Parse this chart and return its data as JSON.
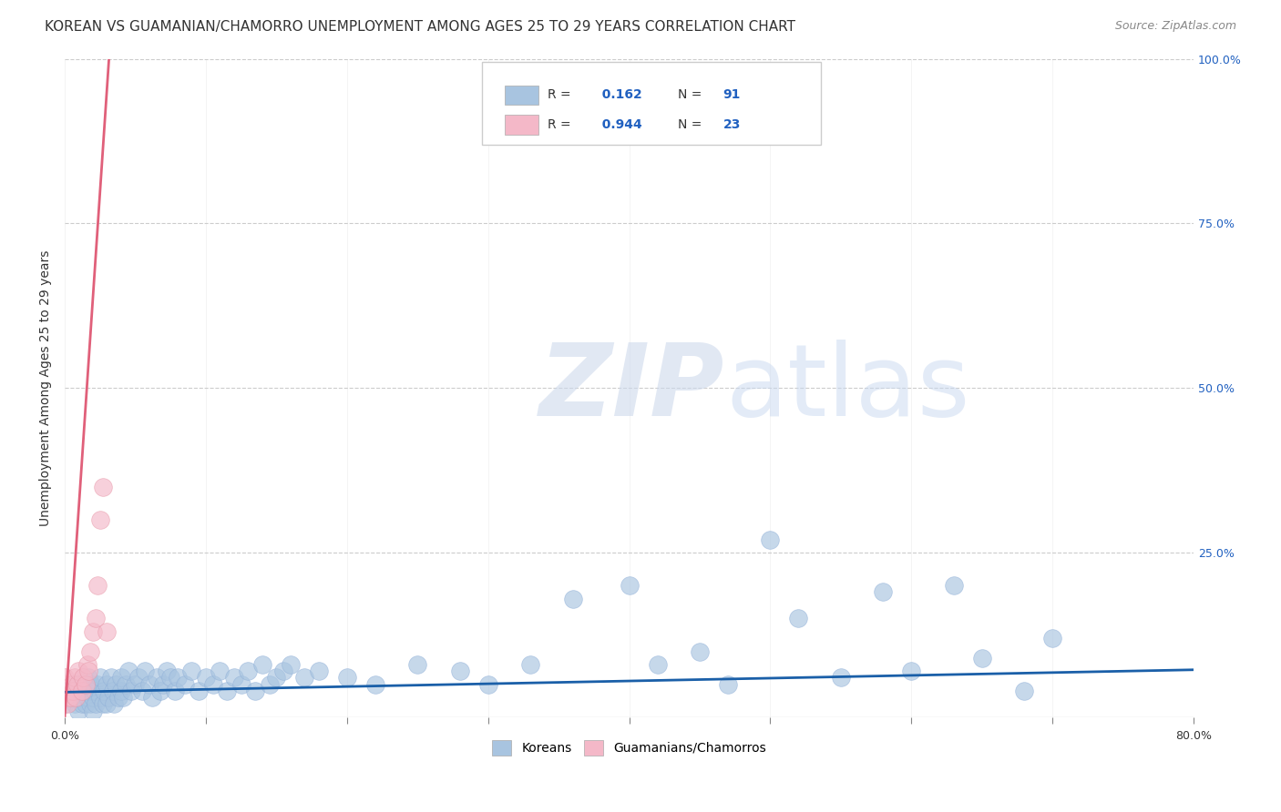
{
  "title": "KOREAN VS GUAMANIAN/CHAMORRO UNEMPLOYMENT AMONG AGES 25 TO 29 YEARS CORRELATION CHART",
  "source": "Source: ZipAtlas.com",
  "ylabel": "Unemployment Among Ages 25 to 29 years",
  "xlim": [
    0.0,
    0.8
  ],
  "ylim": [
    0.0,
    1.0
  ],
  "xticks": [
    0.0,
    0.1,
    0.2,
    0.3,
    0.4,
    0.5,
    0.6,
    0.7,
    0.8
  ],
  "xticklabels": [
    "0.0%",
    "",
    "",
    "",
    "",
    "",
    "",
    "",
    "80.0%"
  ],
  "yticks_right": [
    0.0,
    0.25,
    0.5,
    0.75,
    1.0
  ],
  "yticklabels_right": [
    "",
    "25.0%",
    "50.0%",
    "75.0%",
    "100.0%"
  ],
  "korean_color": "#a8c4e0",
  "guam_color": "#f4b8c8",
  "korean_R": "0.162",
  "korean_N": "91",
  "guam_R": "0.944",
  "guam_N": "23",
  "legend_korean": "Koreans",
  "legend_guam": "Guamanians/Chamorros",
  "korean_x": [
    0.0,
    0.0,
    0.005,
    0.007,
    0.008,
    0.01,
    0.01,
    0.01,
    0.012,
    0.013,
    0.015,
    0.015,
    0.016,
    0.017,
    0.018,
    0.018,
    0.019,
    0.02,
    0.02,
    0.021,
    0.022,
    0.023,
    0.025,
    0.025,
    0.027,
    0.028,
    0.03,
    0.03,
    0.031,
    0.033,
    0.034,
    0.035,
    0.036,
    0.038,
    0.04,
    0.04,
    0.041,
    0.043,
    0.045,
    0.047,
    0.05,
    0.052,
    0.055,
    0.057,
    0.06,
    0.062,
    0.065,
    0.068,
    0.07,
    0.072,
    0.075,
    0.078,
    0.08,
    0.085,
    0.09,
    0.095,
    0.1,
    0.105,
    0.11,
    0.115,
    0.12,
    0.125,
    0.13,
    0.135,
    0.14,
    0.145,
    0.15,
    0.155,
    0.16,
    0.17,
    0.18,
    0.2,
    0.22,
    0.25,
    0.28,
    0.3,
    0.33,
    0.36,
    0.4,
    0.42,
    0.45,
    0.47,
    0.5,
    0.52,
    0.55,
    0.58,
    0.6,
    0.63,
    0.65,
    0.68,
    0.7
  ],
  "korean_y": [
    0.02,
    0.04,
    0.03,
    0.02,
    0.05,
    0.01,
    0.03,
    0.05,
    0.02,
    0.04,
    0.02,
    0.05,
    0.03,
    0.06,
    0.02,
    0.04,
    0.05,
    0.01,
    0.03,
    0.04,
    0.02,
    0.05,
    0.03,
    0.06,
    0.02,
    0.04,
    0.02,
    0.05,
    0.03,
    0.06,
    0.04,
    0.02,
    0.05,
    0.03,
    0.04,
    0.06,
    0.03,
    0.05,
    0.07,
    0.04,
    0.05,
    0.06,
    0.04,
    0.07,
    0.05,
    0.03,
    0.06,
    0.04,
    0.05,
    0.07,
    0.06,
    0.04,
    0.06,
    0.05,
    0.07,
    0.04,
    0.06,
    0.05,
    0.07,
    0.04,
    0.06,
    0.05,
    0.07,
    0.04,
    0.08,
    0.05,
    0.06,
    0.07,
    0.08,
    0.06,
    0.07,
    0.06,
    0.05,
    0.08,
    0.07,
    0.05,
    0.08,
    0.18,
    0.2,
    0.08,
    0.1,
    0.05,
    0.27,
    0.15,
    0.06,
    0.19,
    0.07,
    0.2,
    0.09,
    0.04,
    0.12
  ],
  "guam_x": [
    0.0,
    0.0,
    0.002,
    0.003,
    0.004,
    0.005,
    0.006,
    0.007,
    0.008,
    0.009,
    0.01,
    0.012,
    0.013,
    0.015,
    0.016,
    0.017,
    0.018,
    0.02,
    0.022,
    0.023,
    0.025,
    0.027,
    0.03
  ],
  "guam_y": [
    0.03,
    0.06,
    0.02,
    0.04,
    0.03,
    0.05,
    0.04,
    0.06,
    0.03,
    0.05,
    0.07,
    0.04,
    0.06,
    0.05,
    0.08,
    0.07,
    0.1,
    0.13,
    0.15,
    0.2,
    0.3,
    0.35,
    0.13
  ],
  "korean_trend_x": [
    0.0,
    0.8
  ],
  "korean_trend_y": [
    0.038,
    0.072
  ],
  "guam_trend_x": [
    0.0,
    0.032
  ],
  "guam_trend_y": [
    0.0,
    1.02
  ],
  "title_fontsize": 11,
  "axis_label_fontsize": 10,
  "tick_fontsize": 9,
  "source_fontsize": 9,
  "trend_blue": "#1a5fa8",
  "trend_pink": "#e0607a",
  "watermark_zip_color": "#cdd9ec",
  "watermark_atlas_color": "#c8d8f0",
  "grid_color": "#cccccc",
  "background_color": "#ffffff",
  "right_tick_color": "#2060c0"
}
